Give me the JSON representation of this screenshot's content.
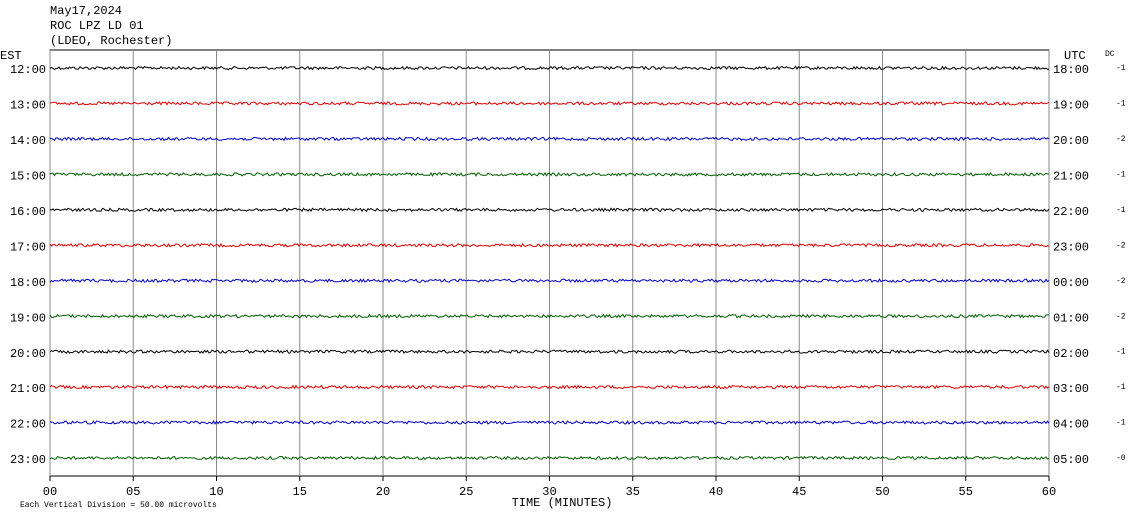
{
  "chart_data": {
    "type": "helicorder",
    "title_lines": [
      "May17,2024",
      "ROC LPZ LD 01",
      "(LDEO, Rochester)"
    ],
    "left_title": "EST",
    "right_title": "UTC",
    "dc_title": "DC",
    "left_labels": [
      "12:00",
      "13:00",
      "14:00",
      "15:00",
      "16:00",
      "17:00",
      "18:00",
      "19:00",
      "20:00",
      "21:00",
      "22:00",
      "23:00"
    ],
    "right_labels": [
      "18:00",
      "19:00",
      "20:00",
      "21:00",
      "22:00",
      "23:00",
      "00:00",
      "01:00",
      "02:00",
      "03:00",
      "04:00",
      "05:00"
    ],
    "dc_labels": [
      "-1",
      "-1",
      "-2",
      "-1",
      "-1",
      "-2",
      "-2",
      "-2",
      "-1",
      "-1",
      "-1",
      "-0"
    ],
    "trace_colors": [
      "#000000",
      "#e00000",
      "#0000c0",
      "#006000"
    ],
    "xlim": [
      0,
      60
    ],
    "xticks": [
      {
        "value": 0,
        "label": "00"
      },
      {
        "value": 5,
        "label": "05"
      },
      10,
      15,
      20,
      25,
      30,
      35,
      40,
      45,
      50,
      55,
      60
    ],
    "xlabel": "TIME (MINUTES)",
    "footnote": "Each Vertical Division =   50.00 microvolts",
    "grid": true
  }
}
